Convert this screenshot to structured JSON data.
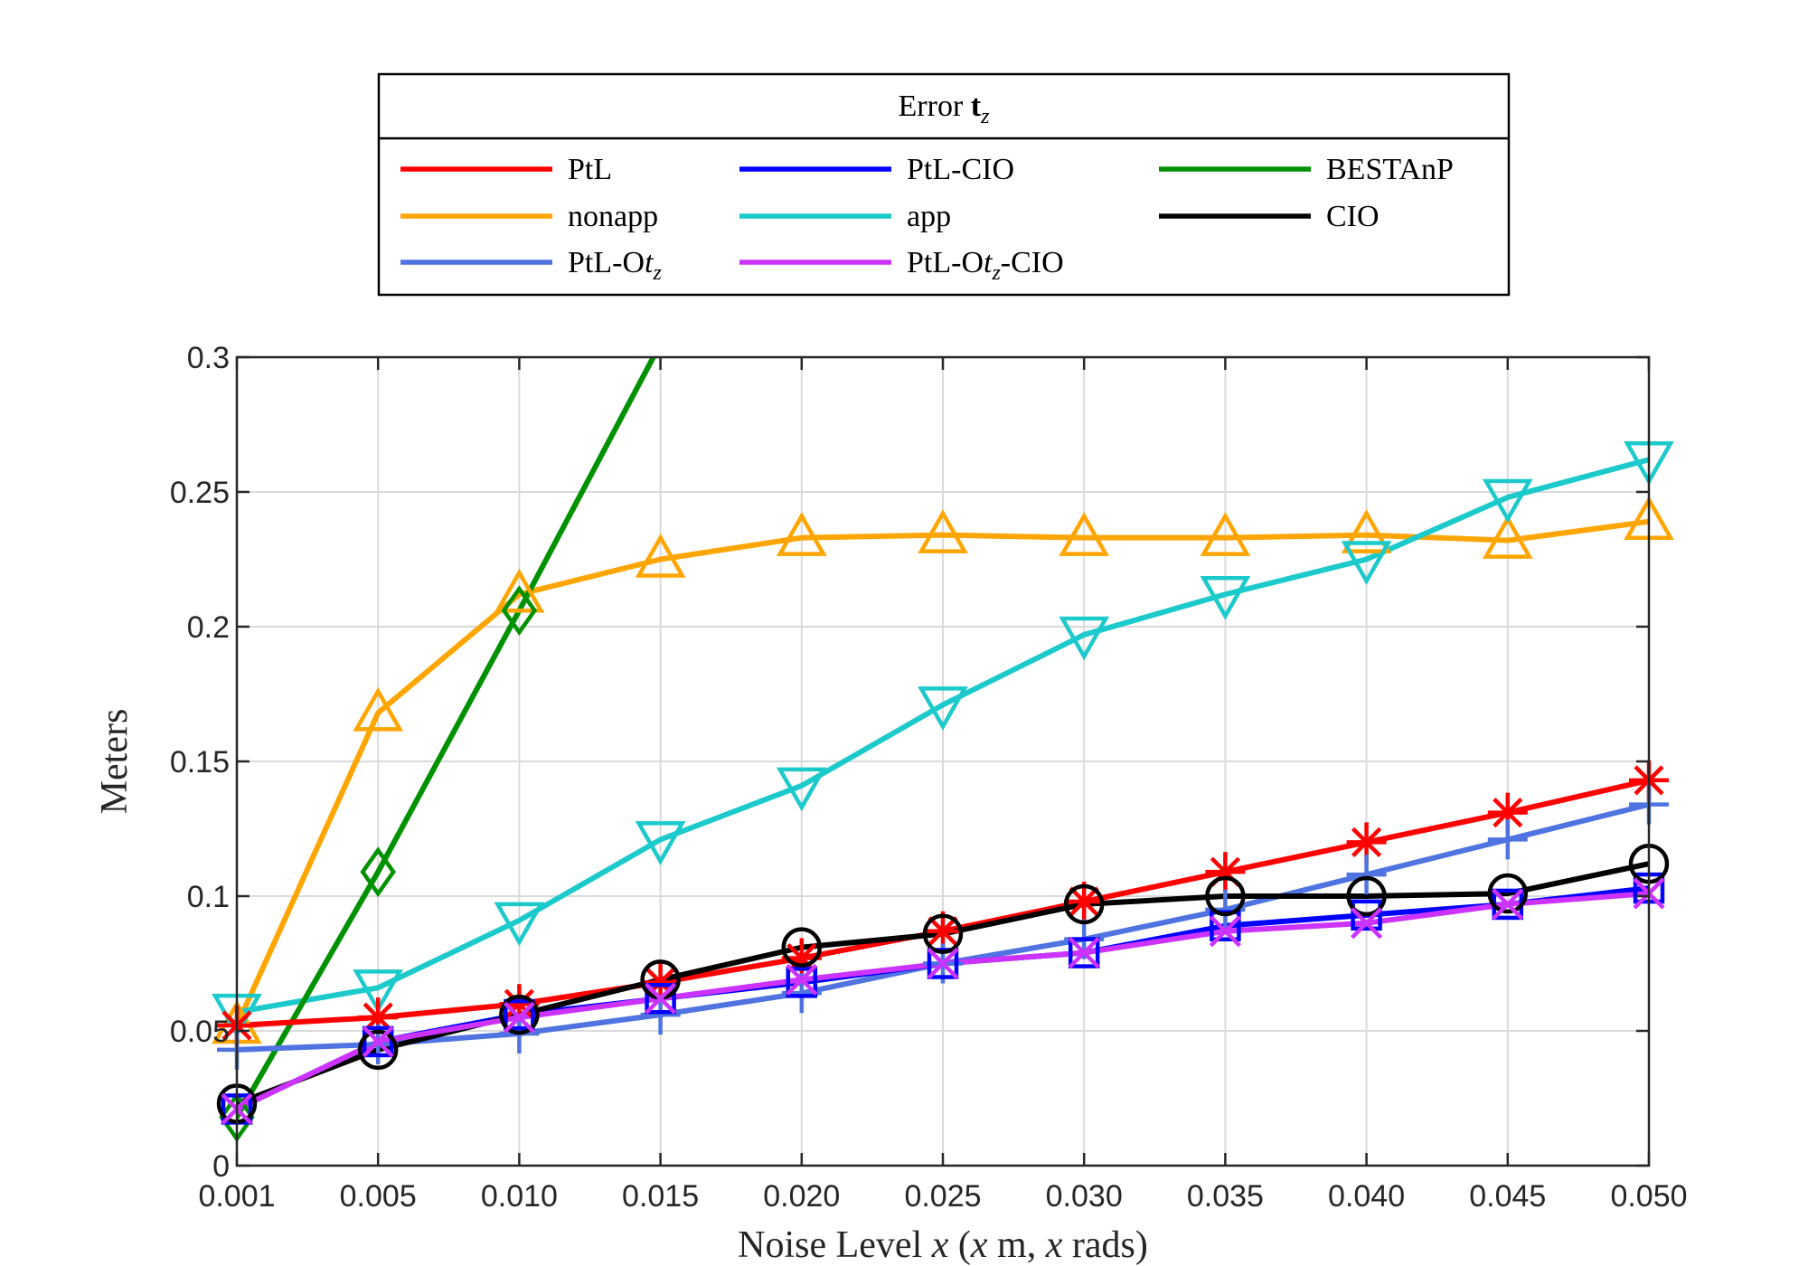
{
  "chart_data": {
    "type": "line",
    "title": "",
    "legend": {
      "title_prefix": "Error ",
      "title_symbol": "t",
      "title_sub": "z",
      "placement": "top-outside",
      "columns": 3
    },
    "x_tick_labels": [
      "0.001",
      "0.005",
      "0.010",
      "0.015",
      "0.020",
      "0.025",
      "0.030",
      "0.035",
      "0.040",
      "0.045",
      "0.050"
    ],
    "y_tick_labels": [
      "0",
      "0.05",
      "0.1",
      "0.15",
      "0.2",
      "0.25",
      "0.3"
    ],
    "y_ticks": [
      0,
      0.05,
      0.1,
      0.15,
      0.2,
      0.25,
      0.3
    ],
    "ylim": [
      0,
      0.3
    ],
    "grid": true,
    "xlabel": {
      "prefix": "Noise Level ",
      "var": "x",
      "mid1": " (",
      "var2": "x",
      "mid2": " m, ",
      "var3": "x",
      "suffix": " rads)"
    },
    "ylabel": "Meters",
    "series": [
      {
        "key": "ptl",
        "name": "PtL",
        "color": "#ff0000",
        "marker": "asterisk",
        "values": [
          0.052,
          0.055,
          0.06,
          0.068,
          0.077,
          0.087,
          0.098,
          0.109,
          0.12,
          0.131,
          0.143
        ]
      },
      {
        "key": "nonapp",
        "name": "nonapp",
        "color": "#ffa500",
        "marker": "triangle-up",
        "values": [
          0.052,
          0.168,
          0.212,
          0.225,
          0.233,
          0.234,
          0.233,
          0.233,
          0.234,
          0.232,
          0.239
        ]
      },
      {
        "key": "ptl-otz",
        "name": "PtL-O",
        "name_var": "t",
        "name_sub": "z",
        "color": "#4f73e0",
        "marker": "plus",
        "values": [
          0.043,
          0.045,
          0.049,
          0.056,
          0.064,
          0.075,
          0.084,
          0.095,
          0.108,
          0.121,
          0.134
        ]
      },
      {
        "key": "ptl-cio",
        "name": "PtL-CIO",
        "color": "#0000ff",
        "marker": "square",
        "values": [
          0.021,
          0.046,
          0.056,
          0.062,
          0.068,
          0.075,
          0.079,
          0.089,
          0.093,
          0.097,
          0.103
        ]
      },
      {
        "key": "app",
        "name": "app",
        "color": "#1cc9cb",
        "marker": "triangle-down",
        "values": [
          0.057,
          0.066,
          0.091,
          0.121,
          0.141,
          0.171,
          0.197,
          0.212,
          0.225,
          0.248,
          0.262
        ]
      },
      {
        "key": "ptl-otz-cio",
        "name": "PtL-O",
        "name_var": "t",
        "name_sub": "z",
        "name_suffix": "-CIO",
        "color": "#cc33ff",
        "marker": "x",
        "values": [
          0.021,
          0.046,
          0.055,
          0.062,
          0.069,
          0.075,
          0.079,
          0.087,
          0.09,
          0.097,
          0.101
        ]
      },
      {
        "key": "bestanp",
        "name": "BESTAnP",
        "color": "#009100",
        "marker": "diamond",
        "values": [
          0.018,
          0.109,
          0.206,
          0.305,
          null,
          null,
          null,
          null,
          null,
          null,
          null
        ]
      },
      {
        "key": "cio",
        "name": "CIO",
        "color": "#000000",
        "marker": "circle",
        "values": [
          0.023,
          0.043,
          0.056,
          0.069,
          0.081,
          0.086,
          0.097,
          0.1,
          0.1,
          0.101,
          0.112
        ]
      }
    ]
  }
}
